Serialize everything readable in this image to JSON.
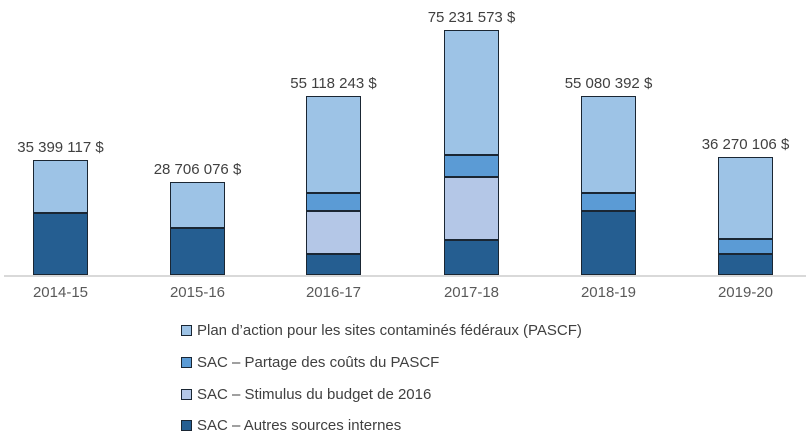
{
  "chart_data": {
    "type": "bar",
    "stacked": true,
    "title": "",
    "xlabel": "",
    "ylabel": "",
    "grid": false,
    "legend_position": "bottom-left",
    "categories": [
      "2014-15",
      "2015-16",
      "2016-17",
      "2017-18",
      "2018-19",
      "2019-20"
    ],
    "total_labels": [
      "35 399 117 $",
      "28 706 076 $",
      "55 118 243 $",
      "75 231 573 $",
      "55 080 392 $",
      "36 270 106 $"
    ],
    "totals": [
      35399117,
      28706076,
      55118243,
      75231573,
      55080392,
      36270106
    ],
    "ylim": [
      0,
      75231573
    ],
    "series": [
      {
        "name": "SAC – Autres sources internes",
        "color": "#255E91",
        "values": [
          19000000,
          14350000,
          6400000,
          10850000,
          19800000,
          6350000
        ]
      },
      {
        "name": "SAC – Stimulus du budget de 2016",
        "color": "#B4C7E7",
        "values": [
          0,
          0,
          13400000,
          19250000,
          0,
          0
        ]
      },
      {
        "name": "SAC – Partage des coûts du PASCF",
        "color": "#5B9BD5",
        "values": [
          0,
          0,
          5450000,
          6650000,
          5350000,
          4620000
        ]
      },
      {
        "name": "Plan d’action pour les sites contaminés fédéraux (PASCF)",
        "color": "#9DC3E6",
        "values": [
          16399117,
          14356076,
          29868243,
          38481573,
          29930392,
          25300106
        ]
      }
    ],
    "legend": [
      {
        "label": "Plan d’action pour les sites contaminés fédéraux (PASCF)",
        "color": "#9DC3E6"
      },
      {
        "label": "SAC – Partage des coûts du PASCF",
        "color": "#5B9BD5"
      },
      {
        "label": "SAC – Stimulus du budget de 2016",
        "color": "#B4C7E7"
      },
      {
        "label": "SAC – Autres sources internes",
        "color": "#255E91"
      }
    ],
    "colors": {
      "bar_border": "#1A2633",
      "axis_line": "#D9D9D9",
      "data_label_text": "#404040",
      "axis_label_text": "#595959",
      "legend_text": "#404040",
      "background": "#FFFFFF"
    }
  }
}
